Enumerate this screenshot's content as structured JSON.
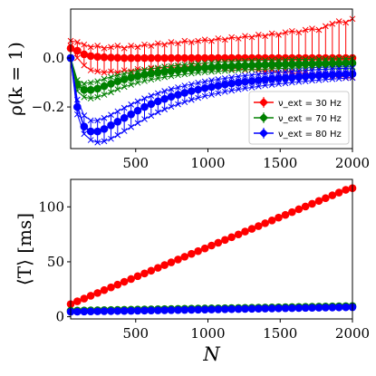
{
  "chart_data": [
    {
      "type": "line",
      "ylabel": "ρ(k = 1)",
      "xlim": [
        50,
        2000
      ],
      "ylim": [
        -0.37,
        0.2
      ],
      "xticks": [
        "500",
        "1000",
        "1500",
        "2000"
      ],
      "yticks": [
        "0.0",
        "−0.2"
      ],
      "grid": false,
      "legend_position": "lower-right",
      "series": [
        {
          "name": "ν_ext = 30 Hz",
          "color": "#ff0000",
          "x": [
            50,
            96,
            143,
            189,
            236,
            282,
            329,
            375,
            421,
            468,
            514,
            561,
            607,
            654,
            700,
            746,
            793,
            839,
            886,
            932,
            979,
            1025,
            1071,
            1118,
            1164,
            1211,
            1257,
            1304,
            1350,
            1396,
            1443,
            1489,
            1536,
            1582,
            1629,
            1675,
            1721,
            1768,
            1814,
            1861,
            1907,
            1954,
            2000
          ],
          "mean": [
            0.04,
            0.03,
            0.015,
            0.008,
            0.005,
            0.003,
            0.002,
            0.001,
            0.0,
            0.0,
            0.0,
            0.0,
            0.0,
            0.0,
            0.0,
            0.0,
            0.0,
            0.0,
            0.0,
            0.0,
            0.0,
            0.0,
            0.0,
            0.0,
            0.0,
            0.0,
            0.0,
            0.0,
            0.0,
            0.0,
            0.0,
            0.0,
            0.0,
            0.0,
            0.0,
            0.0,
            0.0,
            0.0,
            0.0,
            0.0,
            0.0,
            0.0,
            0.0
          ],
          "upper": [
            0.07,
            0.065,
            0.055,
            0.045,
            0.05,
            0.04,
            0.045,
            0.05,
            0.04,
            0.05,
            0.045,
            0.055,
            0.05,
            0.06,
            0.055,
            0.065,
            0.06,
            0.07,
            0.065,
            0.07,
            0.075,
            0.07,
            0.08,
            0.075,
            0.085,
            0.08,
            0.09,
            0.085,
            0.095,
            0.09,
            0.1,
            0.095,
            0.105,
            0.11,
            0.105,
            0.115,
            0.12,
            0.115,
            0.13,
            0.14,
            0.15,
            0.145,
            0.16
          ],
          "lower": [
            0.05,
            0.0,
            -0.03,
            -0.05,
            -0.055,
            -0.06,
            -0.055,
            -0.06,
            -0.05,
            -0.055,
            -0.045,
            -0.05,
            -0.04,
            -0.045,
            -0.035,
            -0.04,
            -0.035,
            -0.04,
            -0.03,
            -0.035,
            -0.03,
            -0.04,
            -0.035,
            -0.04,
            -0.045,
            -0.04,
            -0.05,
            -0.045,
            -0.05,
            -0.055,
            -0.05,
            -0.06,
            -0.055,
            -0.06,
            -0.065,
            -0.06,
            -0.07,
            -0.065,
            -0.07,
            -0.075,
            -0.07,
            -0.08,
            -0.08
          ]
        },
        {
          "name": "ν_ext = 70 Hz",
          "color": "#008000",
          "x": [
            50,
            96,
            143,
            189,
            236,
            282,
            329,
            375,
            421,
            468,
            514,
            561,
            607,
            654,
            700,
            746,
            793,
            839,
            886,
            932,
            979,
            1025,
            1071,
            1118,
            1164,
            1211,
            1257,
            1304,
            1350,
            1396,
            1443,
            1489,
            1536,
            1582,
            1629,
            1675,
            1721,
            1768,
            1814,
            1861,
            1907,
            1954,
            2000
          ],
          "mean": [
            0.0,
            -0.11,
            -0.13,
            -0.13,
            -0.125,
            -0.115,
            -0.105,
            -0.095,
            -0.087,
            -0.08,
            -0.074,
            -0.068,
            -0.063,
            -0.059,
            -0.055,
            -0.052,
            -0.049,
            -0.046,
            -0.044,
            -0.042,
            -0.04,
            -0.038,
            -0.036,
            -0.035,
            -0.034,
            -0.032,
            -0.031,
            -0.03,
            -0.029,
            -0.028,
            -0.027,
            -0.027,
            -0.026,
            -0.025,
            -0.025,
            -0.024,
            -0.024,
            -0.023,
            -0.023,
            -0.022,
            -0.022,
            -0.021,
            -0.021
          ],
          "upper": [
            0.0,
            -0.09,
            -0.105,
            -0.1,
            -0.095,
            -0.085,
            -0.077,
            -0.07,
            -0.064,
            -0.058,
            -0.053,
            -0.048,
            -0.044,
            -0.04,
            -0.036,
            -0.033,
            -0.03,
            -0.027,
            -0.025,
            -0.023,
            -0.021,
            -0.019,
            -0.017,
            -0.016,
            -0.015,
            -0.013,
            -0.012,
            -0.011,
            -0.01,
            -0.009,
            -0.008,
            -0.008,
            -0.007,
            -0.006,
            -0.006,
            -0.005,
            -0.005,
            -0.004,
            -0.004,
            -0.003,
            -0.003,
            -0.002,
            -0.002
          ],
          "lower": [
            0.0,
            -0.135,
            -0.16,
            -0.165,
            -0.16,
            -0.15,
            -0.14,
            -0.128,
            -0.118,
            -0.109,
            -0.101,
            -0.094,
            -0.088,
            -0.083,
            -0.078,
            -0.074,
            -0.07,
            -0.066,
            -0.063,
            -0.06,
            -0.058,
            -0.056,
            -0.054,
            -0.052,
            -0.051,
            -0.049,
            -0.048,
            -0.047,
            -0.046,
            -0.045,
            -0.044,
            -0.043,
            -0.042,
            -0.041,
            -0.04,
            -0.04,
            -0.039,
            -0.038,
            -0.038,
            -0.037,
            -0.037,
            -0.036,
            -0.036
          ]
        },
        {
          "name": "ν_ext = 80 Hz",
          "color": "#0000ff",
          "x": [
            50,
            96,
            143,
            189,
            236,
            282,
            329,
            375,
            421,
            468,
            514,
            561,
            607,
            654,
            700,
            746,
            793,
            839,
            886,
            932,
            979,
            1025,
            1071,
            1118,
            1164,
            1211,
            1257,
            1304,
            1350,
            1396,
            1443,
            1489,
            1536,
            1582,
            1629,
            1675,
            1721,
            1768,
            1814,
            1861,
            1907,
            1954,
            2000
          ],
          "mean": [
            0.0,
            -0.2,
            -0.28,
            -0.3,
            -0.3,
            -0.29,
            -0.275,
            -0.26,
            -0.245,
            -0.23,
            -0.215,
            -0.2,
            -0.188,
            -0.177,
            -0.167,
            -0.158,
            -0.15,
            -0.142,
            -0.135,
            -0.129,
            -0.123,
            -0.118,
            -0.113,
            -0.108,
            -0.104,
            -0.1,
            -0.097,
            -0.094,
            -0.091,
            -0.088,
            -0.085,
            -0.083,
            -0.081,
            -0.079,
            -0.077,
            -0.075,
            -0.073,
            -0.071,
            -0.07,
            -0.068,
            -0.067,
            -0.066,
            -0.065
          ],
          "upper": [
            0.0,
            -0.17,
            -0.235,
            -0.255,
            -0.255,
            -0.245,
            -0.232,
            -0.218,
            -0.204,
            -0.19,
            -0.177,
            -0.165,
            -0.154,
            -0.144,
            -0.135,
            -0.127,
            -0.12,
            -0.113,
            -0.107,
            -0.101,
            -0.096,
            -0.091,
            -0.087,
            -0.083,
            -0.079,
            -0.075,
            -0.072,
            -0.069,
            -0.066,
            -0.063,
            -0.061,
            -0.059,
            -0.057,
            -0.055,
            -0.053,
            -0.051,
            -0.049,
            -0.047,
            -0.046,
            -0.044,
            -0.043,
            -0.042,
            -0.041
          ],
          "lower": [
            0.0,
            -0.23,
            -0.31,
            -0.335,
            -0.345,
            -0.34,
            -0.33,
            -0.315,
            -0.298,
            -0.282,
            -0.266,
            -0.25,
            -0.236,
            -0.222,
            -0.21,
            -0.199,
            -0.189,
            -0.18,
            -0.171,
            -0.163,
            -0.156,
            -0.15,
            -0.144,
            -0.138,
            -0.133,
            -0.128,
            -0.124,
            -0.12,
            -0.116,
            -0.112,
            -0.109,
            -0.106,
            -0.103,
            -0.1,
            -0.097,
            -0.095,
            -0.092,
            -0.09,
            -0.088,
            -0.086,
            -0.084,
            -0.082,
            -0.081
          ]
        }
      ]
    },
    {
      "type": "line",
      "xlabel": "N",
      "ylabel": "⟨T⟩ [ms]",
      "xlim": [
        50,
        2000
      ],
      "ylim": [
        -2,
        125
      ],
      "xticks": [
        "500",
        "1000",
        "1500",
        "2000"
      ],
      "yticks": [
        "0",
        "50",
        "100"
      ],
      "grid": false,
      "series": [
        {
          "name": "ν_ext = 30 Hz",
          "color": "#ff0000",
          "x": [
            50,
            96,
            143,
            189,
            236,
            282,
            329,
            375,
            421,
            468,
            514,
            561,
            607,
            654,
            700,
            746,
            793,
            839,
            886,
            932,
            979,
            1025,
            1071,
            1118,
            1164,
            1211,
            1257,
            1304,
            1350,
            1396,
            1443,
            1489,
            1536,
            1582,
            1629,
            1675,
            1721,
            1768,
            1814,
            1861,
            1907,
            1954,
            2000
          ],
          "values": [
            11.5,
            14.0,
            16.5,
            19.1,
            21.6,
            24.2,
            26.7,
            29.2,
            31.8,
            34.3,
            36.9,
            39.4,
            41.9,
            44.5,
            47.0,
            49.5,
            52.1,
            54.6,
            57.2,
            59.7,
            62.2,
            64.8,
            67.3,
            69.9,
            72.4,
            74.9,
            77.5,
            80.0,
            82.5,
            85.1,
            87.6,
            90.2,
            92.7,
            95.2,
            97.8,
            100.3,
            102.8,
            105.4,
            107.9,
            110.5,
            113.0,
            115.5,
            117.0
          ]
        },
        {
          "name": "ν_ext = 70 Hz",
          "color": "#008000",
          "x": [
            50,
            96,
            143,
            189,
            236,
            282,
            329,
            375,
            421,
            468,
            514,
            561,
            607,
            654,
            700,
            746,
            793,
            839,
            886,
            932,
            979,
            1025,
            1071,
            1118,
            1164,
            1211,
            1257,
            1304,
            1350,
            1396,
            1443,
            1489,
            1536,
            1582,
            1629,
            1675,
            1721,
            1768,
            1814,
            1861,
            1907,
            1954,
            2000
          ],
          "values": [
            5.5,
            5.6,
            5.7,
            5.8,
            5.9,
            6.0,
            6.1,
            6.2,
            6.3,
            6.4,
            6.5,
            6.6,
            6.7,
            6.8,
            6.9,
            7.0,
            7.1,
            7.2,
            7.3,
            7.4,
            7.5,
            7.6,
            7.7,
            7.8,
            7.9,
            8.0,
            8.1,
            8.2,
            8.3,
            8.4,
            8.5,
            8.6,
            8.7,
            8.8,
            8.9,
            9.0,
            9.1,
            9.2,
            9.3,
            9.4,
            9.5,
            9.6,
            9.7
          ]
        },
        {
          "name": "ν_ext = 80 Hz",
          "color": "#0000ff",
          "x": [
            50,
            96,
            143,
            189,
            236,
            282,
            329,
            375,
            421,
            468,
            514,
            561,
            607,
            654,
            700,
            746,
            793,
            839,
            886,
            932,
            979,
            1025,
            1071,
            1118,
            1164,
            1211,
            1257,
            1304,
            1350,
            1396,
            1443,
            1489,
            1536,
            1582,
            1629,
            1675,
            1721,
            1768,
            1814,
            1861,
            1907,
            1954,
            2000
          ],
          "values": [
            4.5,
            4.6,
            4.7,
            4.8,
            4.9,
            5.0,
            5.1,
            5.2,
            5.3,
            5.4,
            5.5,
            5.6,
            5.7,
            5.8,
            5.9,
            6.0,
            6.1,
            6.2,
            6.3,
            6.4,
            6.5,
            6.6,
            6.7,
            6.8,
            6.9,
            7.0,
            7.1,
            7.2,
            7.3,
            7.4,
            7.5,
            7.6,
            7.7,
            7.8,
            7.9,
            8.0,
            8.1,
            8.2,
            8.3,
            8.4,
            8.5,
            8.6,
            8.7
          ]
        }
      ]
    }
  ]
}
